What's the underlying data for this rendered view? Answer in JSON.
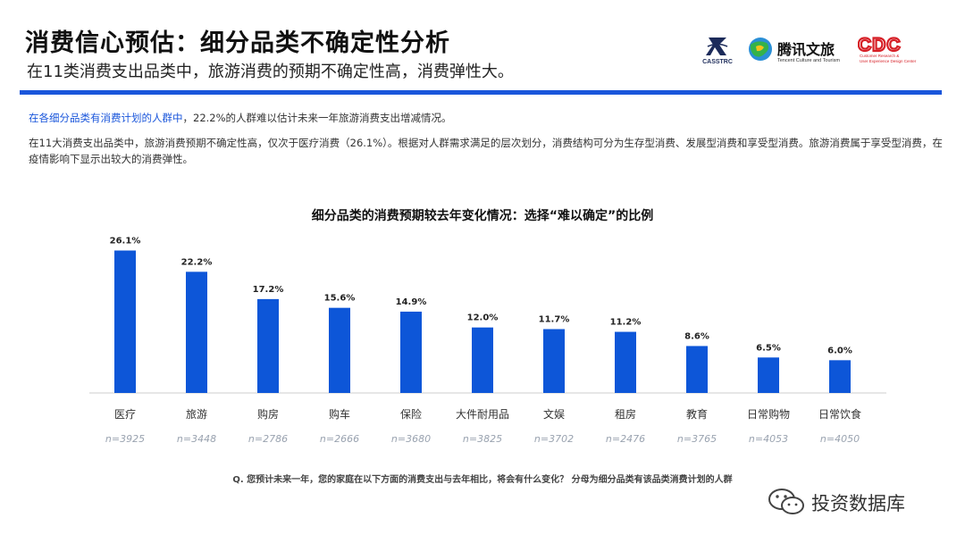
{
  "header": {
    "title": "消费信心预估：细分品类不确定性分析",
    "subtitle": "在11类消费支出品类中，旅游消费的预期不确定性高，消费弹性大。"
  },
  "logos": {
    "casstrc": "CASSTRC",
    "tencent_name": "腾讯文旅",
    "tencent_sub": "Tencent Culture and Tourism",
    "cdc": "CDC",
    "cdc_sub_1": "Customer Research &",
    "cdc_sub_2": "User Experience Design Center"
  },
  "notes": {
    "line1_highlight": "在各细分品类有消费计划的人群中",
    "line1_rest": "，22.2%的人群难以估计未来一年旅游消费支出增减情况。",
    "line2": "在11大消费支出品类中，旅游消费预期不确定性高，仅次于医疗消费（26.1%）。根据对人群需求满足的层次划分，消费结构可分为生存型消费、发展型消费和享受型消费。旅游消费属于享受型消费，在疫情影响下显示出较大的消费弹性。"
  },
  "chart_data": {
    "type": "bar",
    "title": "细分品类的消费预期较去年变化情况：选择“难以确定”的比例",
    "categories": [
      "医疗",
      "旅游",
      "购房",
      "购车",
      "保险",
      "大件耐用品",
      "文娱",
      "租房",
      "教育",
      "日常购物",
      "日常饮食"
    ],
    "values": [
      26.1,
      22.2,
      17.2,
      15.6,
      14.9,
      12.0,
      11.7,
      11.2,
      8.6,
      6.5,
      6.0
    ],
    "value_labels": [
      "26.1%",
      "22.2%",
      "17.2%",
      "15.6%",
      "14.9%",
      "12.0%",
      "11.7%",
      "11.2%",
      "8.6%",
      "6.5%",
      "6.0%"
    ],
    "sample_sizes": [
      "n=3925",
      "n=3448",
      "n=2786",
      "n=2666",
      "n=3680",
      "n=3825",
      "n=3702",
      "n=2476",
      "n=3765",
      "n=4053",
      "n=4050"
    ],
    "ylim": [
      0,
      27
    ],
    "grid": false,
    "bar_color": "#0d56d8"
  },
  "footnote": "Q. 您预计未来一年，您的家庭在以下方面的消费支出与去年相比，将会有什么变化？ 分母为细分品类有该品类消费计划的人群",
  "watermark": "投资数据库",
  "colors": {
    "accent": "#1a56db",
    "cdc_red": "#d61f26"
  }
}
